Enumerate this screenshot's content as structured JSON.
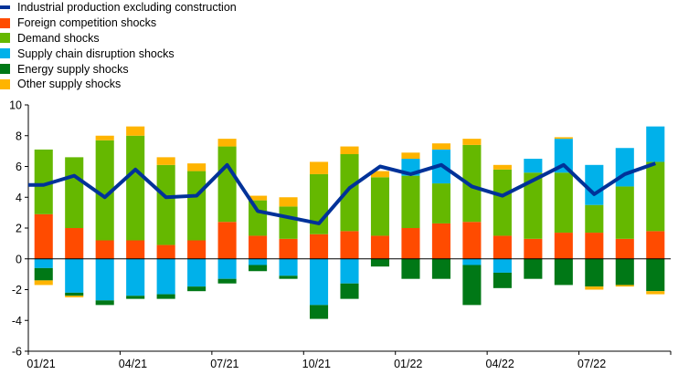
{
  "chart_data": {
    "type": "bar",
    "stacked": true,
    "categories": [
      "01/21",
      "02/21",
      "03/21",
      "04/21",
      "05/21",
      "06/21",
      "07/21",
      "08/21",
      "09/21",
      "10/21",
      "11/21",
      "12/21",
      "01/22",
      "02/22",
      "03/22",
      "04/22",
      "05/22",
      "06/22",
      "07/22",
      "08/22",
      "09/22"
    ],
    "x_tick_labels": [
      "01/21",
      "04/21",
      "07/21",
      "10/21",
      "01/22",
      "04/22",
      "07/22"
    ],
    "x_tick_indices": [
      0,
      3,
      6,
      9,
      12,
      15,
      18
    ],
    "y_ticks": [
      10,
      8,
      6,
      4,
      2,
      0,
      -2,
      -4,
      -6
    ],
    "ylim": [
      -6,
      10
    ],
    "grid": false,
    "legend_position": "top-left",
    "series": [
      {
        "name": "Foreign competition shocks",
        "color": "#ff4b00",
        "values": [
          2.9,
          2.0,
          1.2,
          1.2,
          0.9,
          1.2,
          2.4,
          1.5,
          1.3,
          1.6,
          1.8,
          1.5,
          2.0,
          2.3,
          2.4,
          1.5,
          1.3,
          1.7,
          1.7,
          1.3,
          1.8
        ]
      },
      {
        "name": "Demand shocks",
        "color": "#65b800",
        "values": [
          4.2,
          4.6,
          6.5,
          6.8,
          5.2,
          4.5,
          4.9,
          2.3,
          2.1,
          3.9,
          5.0,
          3.8,
          3.4,
          2.6,
          5.0,
          4.3,
          4.3,
          3.9,
          1.8,
          3.4,
          4.5
        ]
      },
      {
        "name": "Supply chain disruption shocks",
        "color": "#00b1ea",
        "values": [
          -0.6,
          -2.2,
          -2.7,
          -2.4,
          -2.3,
          -1.8,
          -1.3,
          -0.4,
          -1.1,
          -3.0,
          -1.6,
          0.0,
          1.1,
          2.2,
          -0.4,
          -0.9,
          0.9,
          2.2,
          2.6,
          2.5,
          2.3
        ]
      },
      {
        "name": "Energy supply shocks",
        "color": "#007816",
        "values": [
          -0.8,
          -0.2,
          -0.3,
          -0.2,
          -0.3,
          -0.3,
          -0.3,
          -0.4,
          -0.2,
          -0.9,
          -1.0,
          -0.5,
          -1.3,
          -1.3,
          -2.6,
          -1.0,
          -1.3,
          -1.7,
          -1.8,
          -1.7,
          -2.1
        ]
      },
      {
        "name": "Other supply shocks",
        "color": "#ffb400",
        "values": [
          -0.3,
          -0.1,
          0.3,
          0.6,
          0.5,
          0.5,
          0.5,
          0.3,
          0.6,
          0.8,
          0.5,
          0.4,
          0.4,
          0.4,
          0.4,
          0.3,
          0.0,
          0.1,
          -0.2,
          -0.1,
          -0.2
        ]
      }
    ],
    "line": {
      "name": "Industrial production excluding construction",
      "color": "#003299",
      "values": [
        4.8,
        5.4,
        4.0,
        5.8,
        4.0,
        4.1,
        6.1,
        3.1,
        2.7,
        2.3,
        4.6,
        6.0,
        5.5,
        6.1,
        4.7,
        4.1,
        5.1,
        6.1,
        4.2,
        5.5,
        6.2
      ]
    }
  },
  "legend_order": [
    "Industrial production excluding construction",
    "Foreign competition shocks",
    "Demand shocks",
    "Supply chain disruption shocks",
    "Energy supply shocks",
    "Other supply shocks"
  ]
}
